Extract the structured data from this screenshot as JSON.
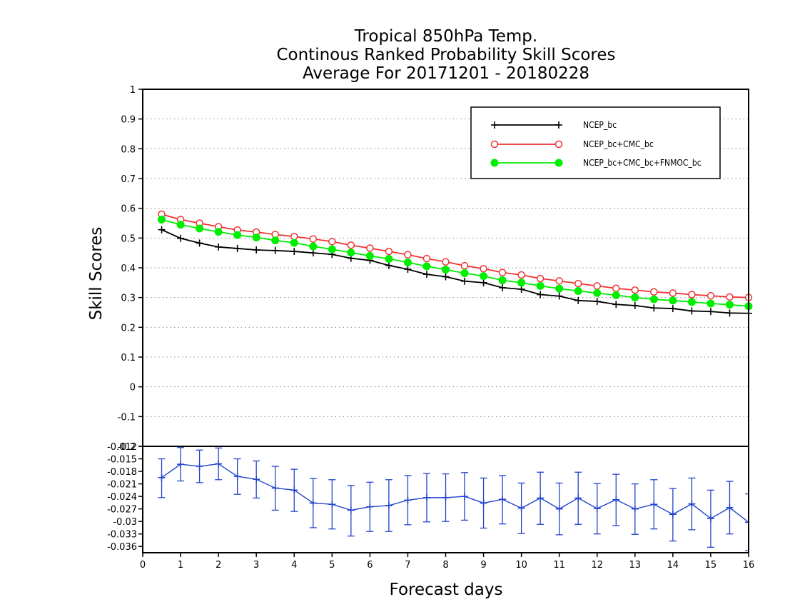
{
  "chart_data": [
    {
      "type": "line",
      "title": "Tropical 850hPa Temp.",
      "subtitle_lines": [
        "Continous Ranked Probability Skill Scores",
        "Average For 20171201 - 20180228"
      ],
      "xlabel": "Forecast days",
      "ylabel": "Skill Scores",
      "xlim": [
        0,
        16
      ],
      "ylim": [
        -0.2,
        1
      ],
      "x_ticks": [
        "0",
        "1",
        "2",
        "3",
        "4",
        "5",
        "6",
        "7",
        "8",
        "9",
        "10",
        "11",
        "12",
        "13",
        "14",
        "15",
        "16"
      ],
      "y_ticks": [
        "-0.2",
        "-0.1",
        "0",
        "0.1",
        "0.2",
        "0.3",
        "0.4",
        "0.5",
        "0.6",
        "0.7",
        "0.8",
        "0.9",
        "1"
      ],
      "grid": true,
      "legend_position": "top-right",
      "x": [
        0.5,
        1.0,
        1.5,
        2.0,
        2.5,
        3.0,
        3.5,
        4.0,
        4.5,
        5.0,
        5.5,
        6.0,
        6.5,
        7.0,
        7.5,
        8.0,
        8.5,
        9.0,
        9.5,
        10.0,
        10.5,
        11.0,
        11.5,
        12.0,
        12.5,
        13.0,
        13.5,
        14.0,
        14.5,
        15.0,
        15.5,
        16.0
      ],
      "series": [
        {
          "name": "NCEP_bc",
          "color": "#000000",
          "marker": "plus",
          "values": [
            0.528,
            0.499,
            0.483,
            0.47,
            0.465,
            0.46,
            0.458,
            0.455,
            0.45,
            0.445,
            0.432,
            0.425,
            0.408,
            0.395,
            0.378,
            0.37,
            0.355,
            0.35,
            0.333,
            0.328,
            0.31,
            0.305,
            0.29,
            0.287,
            0.277,
            0.273,
            0.265,
            0.263,
            0.255,
            0.253,
            0.248,
            0.247
          ]
        },
        {
          "name": "NCEP_bc+CMC_bc",
          "color": "#ee3333",
          "marker": "open-circle",
          "values": [
            0.58,
            0.562,
            0.55,
            0.538,
            0.527,
            0.52,
            0.512,
            0.505,
            0.497,
            0.488,
            0.476,
            0.466,
            0.455,
            0.444,
            0.431,
            0.42,
            0.407,
            0.397,
            0.384,
            0.376,
            0.364,
            0.356,
            0.347,
            0.339,
            0.331,
            0.325,
            0.319,
            0.315,
            0.31,
            0.306,
            0.302,
            0.3
          ]
        },
        {
          "name": "NCEP_bc+CMC_bc+FNMOC_bc",
          "color": "#00ee00",
          "marker": "filled-circle",
          "values": [
            0.562,
            0.545,
            0.532,
            0.521,
            0.51,
            0.502,
            0.492,
            0.484,
            0.472,
            0.462,
            0.451,
            0.44,
            0.43,
            0.418,
            0.405,
            0.394,
            0.382,
            0.372,
            0.358,
            0.35,
            0.339,
            0.33,
            0.322,
            0.315,
            0.308,
            0.3,
            0.294,
            0.29,
            0.285,
            0.28,
            0.276,
            0.271
          ]
        }
      ]
    },
    {
      "type": "line",
      "xlim": [
        0,
        16
      ],
      "ylim": [
        -0.0375,
        -0.012
      ],
      "y_ticks": [
        "-0.012",
        "-0.015",
        "-0.018",
        "-0.021",
        "-0.024",
        "-0.027",
        "-0.03",
        "-0.033",
        "-0.036"
      ],
      "x": [
        0.5,
        1.0,
        1.5,
        2.0,
        2.5,
        3.0,
        3.5,
        4.0,
        4.5,
        5.0,
        5.5,
        6.0,
        6.5,
        7.0,
        7.5,
        8.0,
        8.5,
        9.0,
        9.5,
        10.0,
        10.5,
        11.0,
        11.5,
        12.0,
        12.5,
        13.0,
        13.5,
        14.0,
        14.5,
        15.0,
        15.5,
        16.0
      ],
      "series": [
        {
          "color": "#2244cc",
          "marker": "plus",
          "values": [
            -0.0195,
            -0.0163,
            -0.0168,
            -0.0162,
            -0.0192,
            -0.0199,
            -0.022,
            -0.0225,
            -0.0256,
            -0.0259,
            -0.0273,
            -0.0265,
            -0.0262,
            -0.0249,
            -0.0243,
            -0.0243,
            -0.024,
            -0.0256,
            -0.0247,
            -0.0268,
            -0.0244,
            -0.027,
            -0.0244,
            -0.0269,
            -0.0248,
            -0.027,
            -0.0259,
            -0.0283,
            -0.0258,
            -0.0293,
            -0.0267,
            -0.0302
          ],
          "error_low": [
            -0.0243,
            -0.0203,
            -0.0207,
            -0.02,
            -0.0235,
            -0.0244,
            -0.0273,
            -0.0276,
            -0.0315,
            -0.0318,
            -0.0335,
            -0.0324,
            -0.0324,
            -0.0308,
            -0.0301,
            -0.03,
            -0.0297,
            -0.0316,
            -0.0306,
            -0.0329,
            -0.0307,
            -0.0332,
            -0.0307,
            -0.033,
            -0.031,
            -0.0331,
            -0.0318,
            -0.0347,
            -0.032,
            -0.0362,
            -0.033,
            -0.037
          ],
          "error_high": [
            -0.015,
            -0.0123,
            -0.0129,
            -0.0124,
            -0.015,
            -0.0155,
            -0.0168,
            -0.0175,
            -0.0197,
            -0.02,
            -0.0214,
            -0.0206,
            -0.02,
            -0.019,
            -0.0185,
            -0.0186,
            -0.0183,
            -0.0196,
            -0.019,
            -0.0208,
            -0.0182,
            -0.0208,
            -0.0182,
            -0.0209,
            -0.0187,
            -0.021,
            -0.02,
            -0.0221,
            -0.0196,
            -0.0225,
            -0.0204,
            -0.0234
          ]
        }
      ]
    }
  ]
}
